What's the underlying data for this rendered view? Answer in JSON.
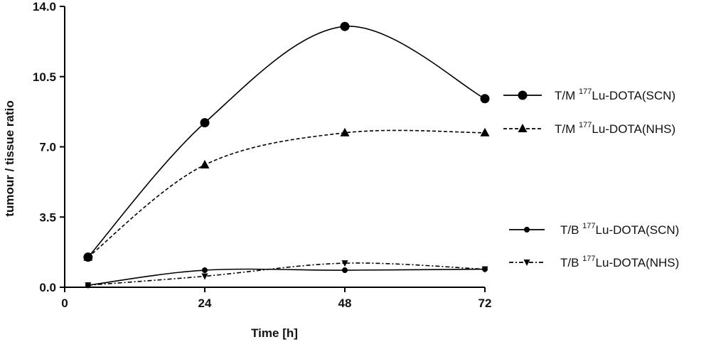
{
  "chart_data": {
    "type": "line",
    "title": "",
    "xlabel": "Time [h]",
    "ylabel": "tumour / tissue ratio",
    "xlim": [
      0,
      72
    ],
    "ylim": [
      0,
      14
    ],
    "xticks": [
      0,
      24,
      48,
      72
    ],
    "xtick_labels": [
      "0",
      "24",
      "48",
      "72"
    ],
    "yticks": [
      0,
      3.5,
      7,
      10.5,
      14
    ],
    "ytick_labels": [
      "0.0",
      "3.5",
      "7.0",
      "10.5",
      "14.0"
    ],
    "grid": false,
    "legend_position": "right",
    "series": [
      {
        "name_prefix": "T/M ",
        "name_superscript": "177",
        "name_suffix": "Lu-DOTA(SCN)",
        "marker": "circle",
        "line_style": "solid",
        "x": [
          4,
          24,
          48,
          72
        ],
        "y": [
          1.5,
          8.2,
          13.0,
          9.4
        ]
      },
      {
        "name_prefix": "T/M ",
        "name_superscript": "177",
        "name_suffix": "Lu-DOTA(NHS)",
        "marker": "triangle-up",
        "line_style": "dashed",
        "x": [
          4,
          24,
          48,
          72
        ],
        "y": [
          1.5,
          6.1,
          7.7,
          7.7
        ]
      },
      {
        "name_prefix": "T/B ",
        "name_superscript": "177",
        "name_suffix": "Lu-DOTA(SCN)",
        "marker": "small-circle",
        "line_style": "solid",
        "x": [
          4,
          24,
          48,
          72
        ],
        "y": [
          0.1,
          0.85,
          0.85,
          0.9
        ]
      },
      {
        "name_prefix": "T/B ",
        "name_superscript": "177",
        "name_suffix": "Lu-DOTA(NHS)",
        "marker": "triangle-down",
        "line_style": "dash-dot",
        "x": [
          4,
          24,
          48,
          72
        ],
        "y": [
          0.1,
          0.55,
          1.2,
          0.9
        ]
      }
    ]
  }
}
